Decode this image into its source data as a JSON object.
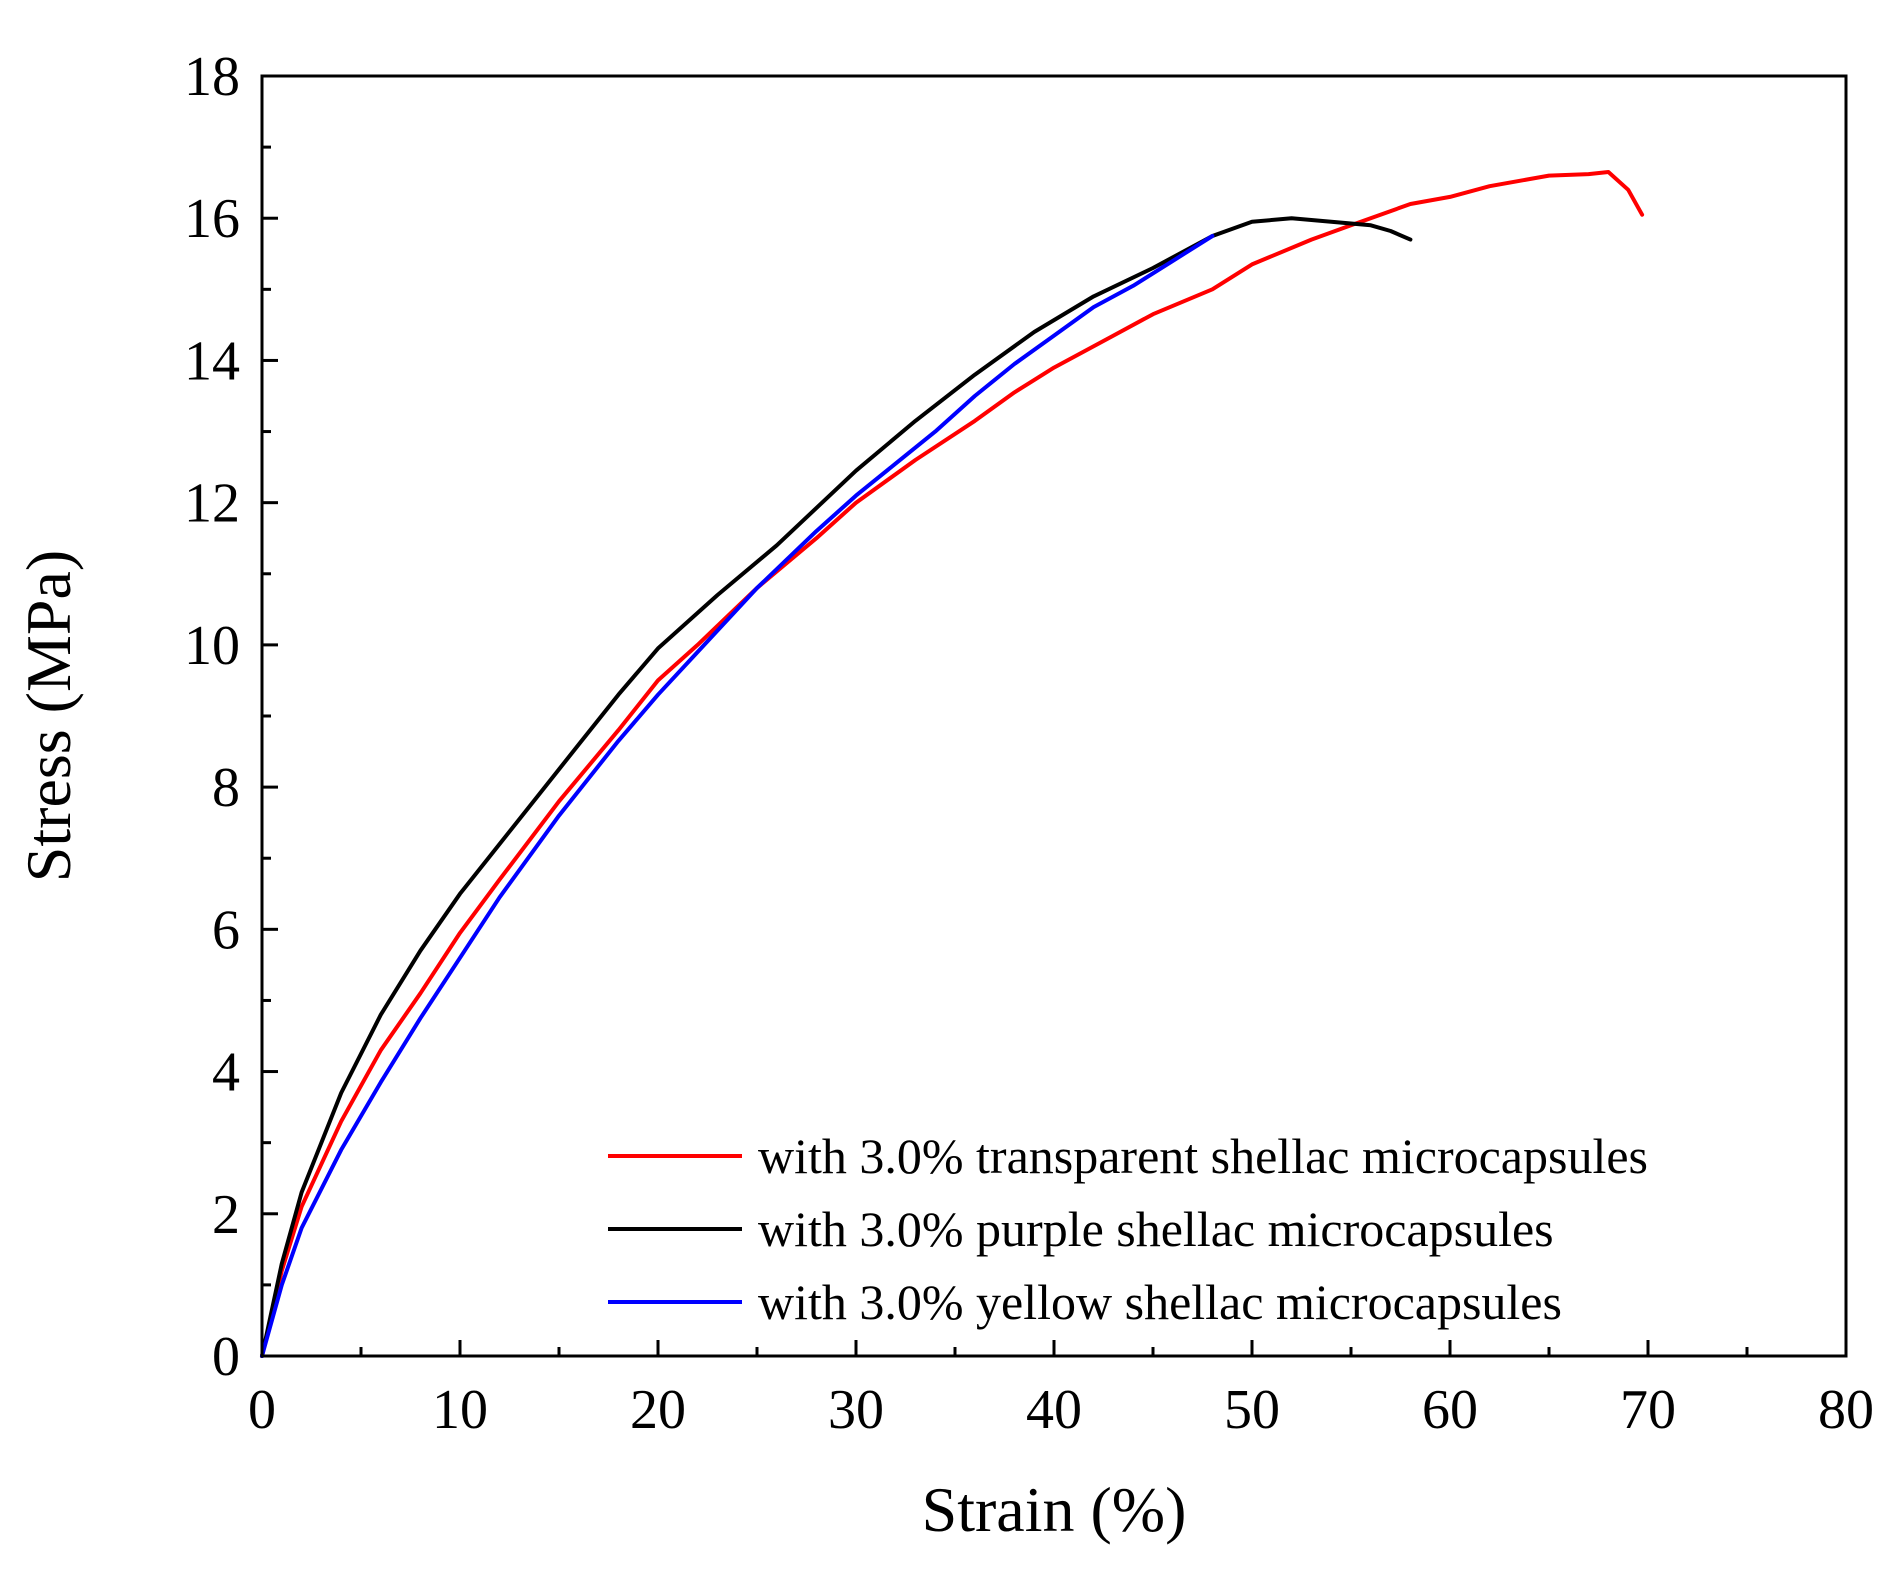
{
  "chart_data": {
    "type": "line",
    "xlabel": "Strain (%)",
    "ylabel": "Stress (MPa)",
    "xlim": [
      0,
      80
    ],
    "ylim": [
      0,
      18
    ],
    "x_ticks": [
      0,
      10,
      20,
      30,
      40,
      50,
      60,
      70,
      80
    ],
    "y_ticks": [
      0,
      2,
      4,
      6,
      8,
      10,
      12,
      14,
      16,
      18
    ],
    "grid": false,
    "legend_position": "bottom-right",
    "series": [
      {
        "name": "with 3.0% transparent shellac microcapsules",
        "color": "#ff0000",
        "points": [
          [
            0,
            0
          ],
          [
            1,
            1.2
          ],
          [
            2,
            2.1
          ],
          [
            4,
            3.3
          ],
          [
            6,
            4.3
          ],
          [
            8,
            5.1
          ],
          [
            10,
            5.95
          ],
          [
            12,
            6.7
          ],
          [
            15,
            7.8
          ],
          [
            18,
            8.8
          ],
          [
            20,
            9.5
          ],
          [
            22,
            10.0
          ],
          [
            25,
            10.8
          ],
          [
            28,
            11.5
          ],
          [
            30,
            12.0
          ],
          [
            33,
            12.6
          ],
          [
            36,
            13.15
          ],
          [
            38,
            13.55
          ],
          [
            40,
            13.9
          ],
          [
            43,
            14.35
          ],
          [
            45,
            14.65
          ],
          [
            48,
            15.0
          ],
          [
            50,
            15.35
          ],
          [
            53,
            15.7
          ],
          [
            55,
            15.9
          ],
          [
            58,
            16.2
          ],
          [
            60,
            16.3
          ],
          [
            62,
            16.45
          ],
          [
            64,
            16.55
          ],
          [
            65,
            16.6
          ],
          [
            67,
            16.62
          ],
          [
            68,
            16.65
          ],
          [
            69,
            16.4
          ],
          [
            69.7,
            16.05
          ]
        ]
      },
      {
        "name": "with 3.0% purple shellac microcapsules",
        "color": "#000000",
        "points": [
          [
            0,
            0
          ],
          [
            1,
            1.3
          ],
          [
            2,
            2.3
          ],
          [
            4,
            3.7
          ],
          [
            6,
            4.8
          ],
          [
            8,
            5.7
          ],
          [
            10,
            6.5
          ],
          [
            12,
            7.2
          ],
          [
            14,
            7.9
          ],
          [
            16,
            8.6
          ],
          [
            18,
            9.3
          ],
          [
            20,
            9.95
          ],
          [
            23,
            10.7
          ],
          [
            26,
            11.4
          ],
          [
            30,
            12.45
          ],
          [
            33,
            13.15
          ],
          [
            36,
            13.8
          ],
          [
            39,
            14.4
          ],
          [
            42,
            14.9
          ],
          [
            45,
            15.3
          ],
          [
            48,
            15.75
          ],
          [
            50,
            15.95
          ],
          [
            52,
            16.0
          ],
          [
            54,
            15.95
          ],
          [
            56,
            15.9
          ],
          [
            57,
            15.82
          ],
          [
            58,
            15.7
          ]
        ]
      },
      {
        "name": "with 3.0% yellow shellac microcapsules",
        "color": "#0000ff",
        "points": [
          [
            0,
            0
          ],
          [
            1,
            1.0
          ],
          [
            2,
            1.8
          ],
          [
            4,
            2.9
          ],
          [
            6,
            3.85
          ],
          [
            8,
            4.75
          ],
          [
            10,
            5.6
          ],
          [
            12,
            6.45
          ],
          [
            15,
            7.6
          ],
          [
            18,
            8.65
          ],
          [
            20,
            9.3
          ],
          [
            22,
            9.9
          ],
          [
            25,
            10.8
          ],
          [
            28,
            11.6
          ],
          [
            30,
            12.1
          ],
          [
            32,
            12.55
          ],
          [
            34,
            13.0
          ],
          [
            36,
            13.5
          ],
          [
            38,
            13.95
          ],
          [
            40,
            14.35
          ],
          [
            42,
            14.75
          ],
          [
            44,
            15.05
          ],
          [
            46,
            15.4
          ],
          [
            48,
            15.75
          ]
        ]
      }
    ]
  }
}
